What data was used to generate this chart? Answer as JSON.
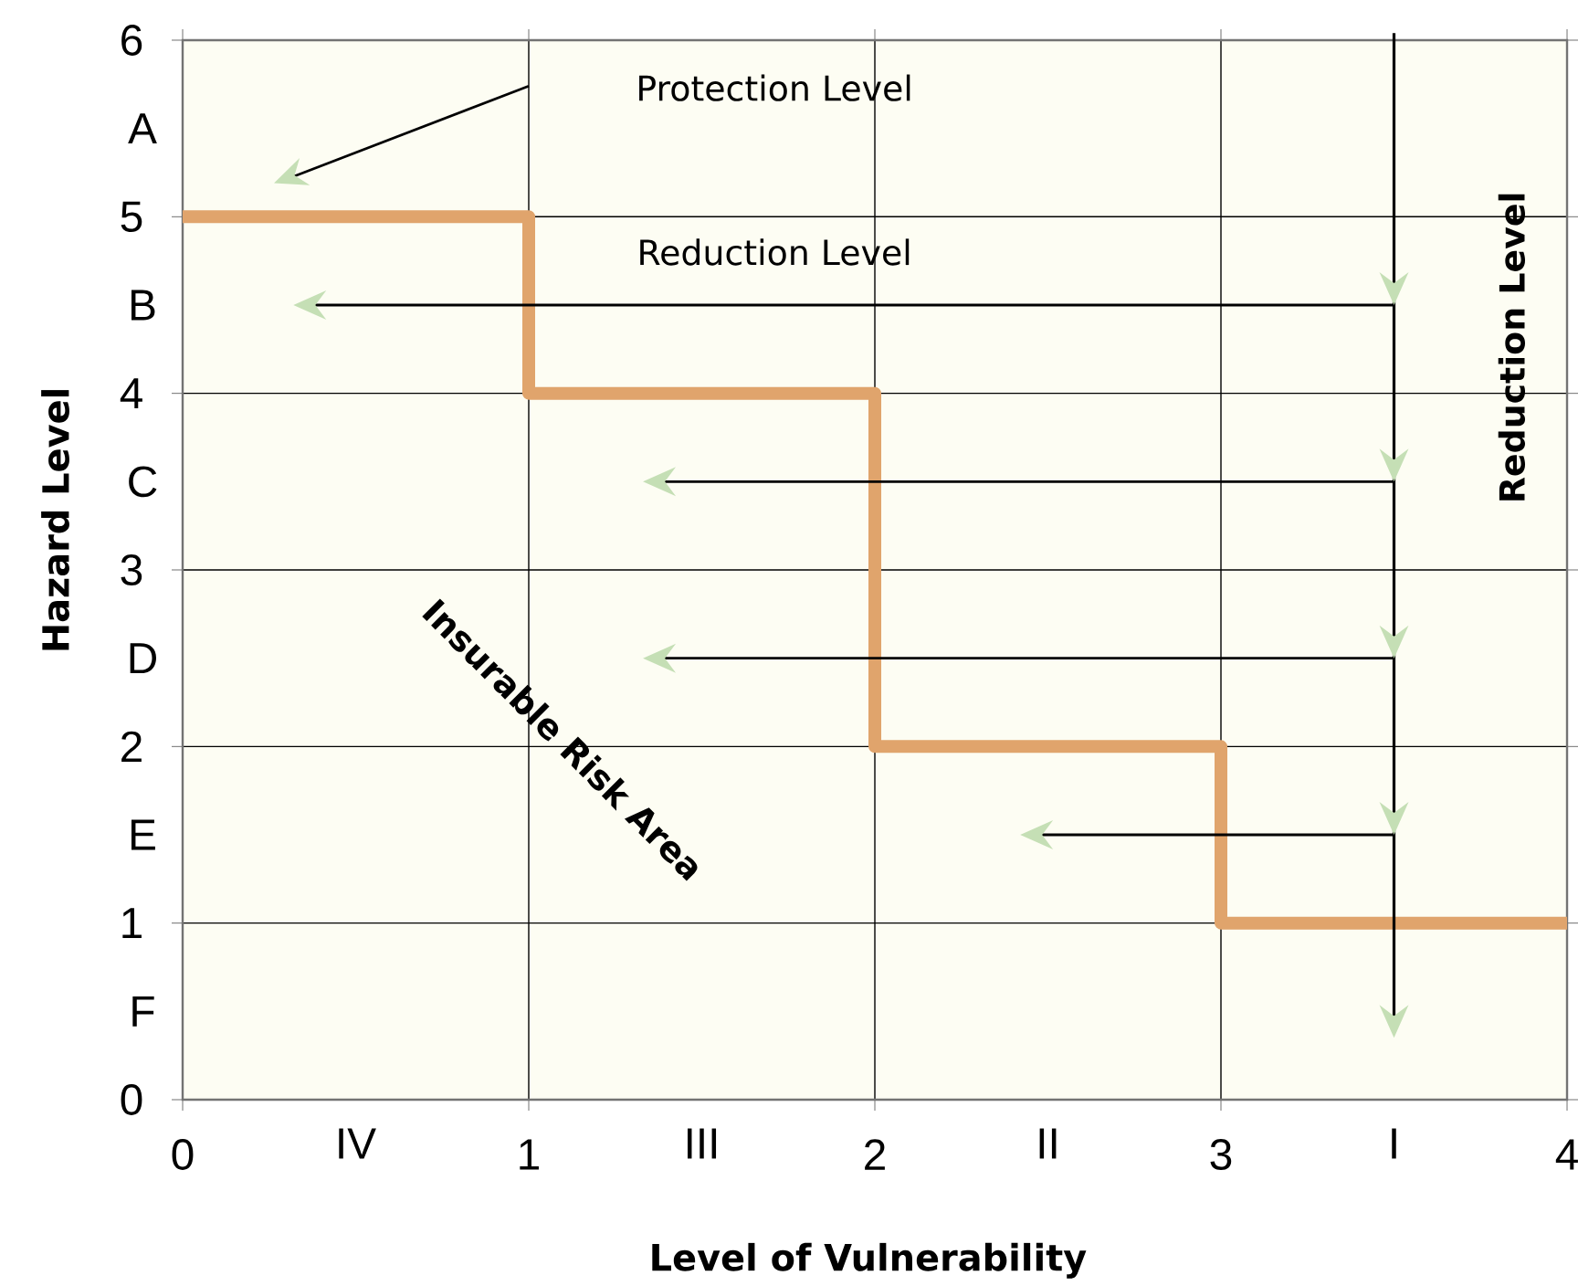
{
  "chart_data": {
    "type": "step",
    "xlabel": "Level of Vulnerability",
    "ylabel": "Hazard Level",
    "x": [
      0,
      1,
      2,
      3,
      4
    ],
    "values": [
      5,
      4,
      2,
      1,
      1
    ],
    "color": "#e0a46c",
    "xlim": [
      0,
      4
    ],
    "ylim": [
      0,
      6
    ],
    "xticks": [
      0,
      {
        "value": 0.5,
        "label": "IV"
      },
      1,
      {
        "value": 1.5,
        "label": "III"
      },
      2,
      {
        "value": 2.5,
        "label": "II"
      },
      3,
      {
        "value": 3.5,
        "label": "I"
      },
      4
    ],
    "yticks": [
      0,
      {
        "value": 0.5,
        "label": "F"
      },
      1,
      {
        "value": 1.5,
        "label": "E"
      },
      2,
      {
        "value": 2.5,
        "label": "D"
      },
      3,
      {
        "value": 3.5,
        "label": "C"
      },
      4,
      {
        "value": 4.5,
        "label": "B"
      },
      5,
      {
        "value": 5.5,
        "label": "A"
      },
      6
    ],
    "grid": true,
    "annotations": [
      "Protection Level",
      "Reduction Level",
      "Reduction Level",
      "Insurable Risk Area"
    ]
  }
}
